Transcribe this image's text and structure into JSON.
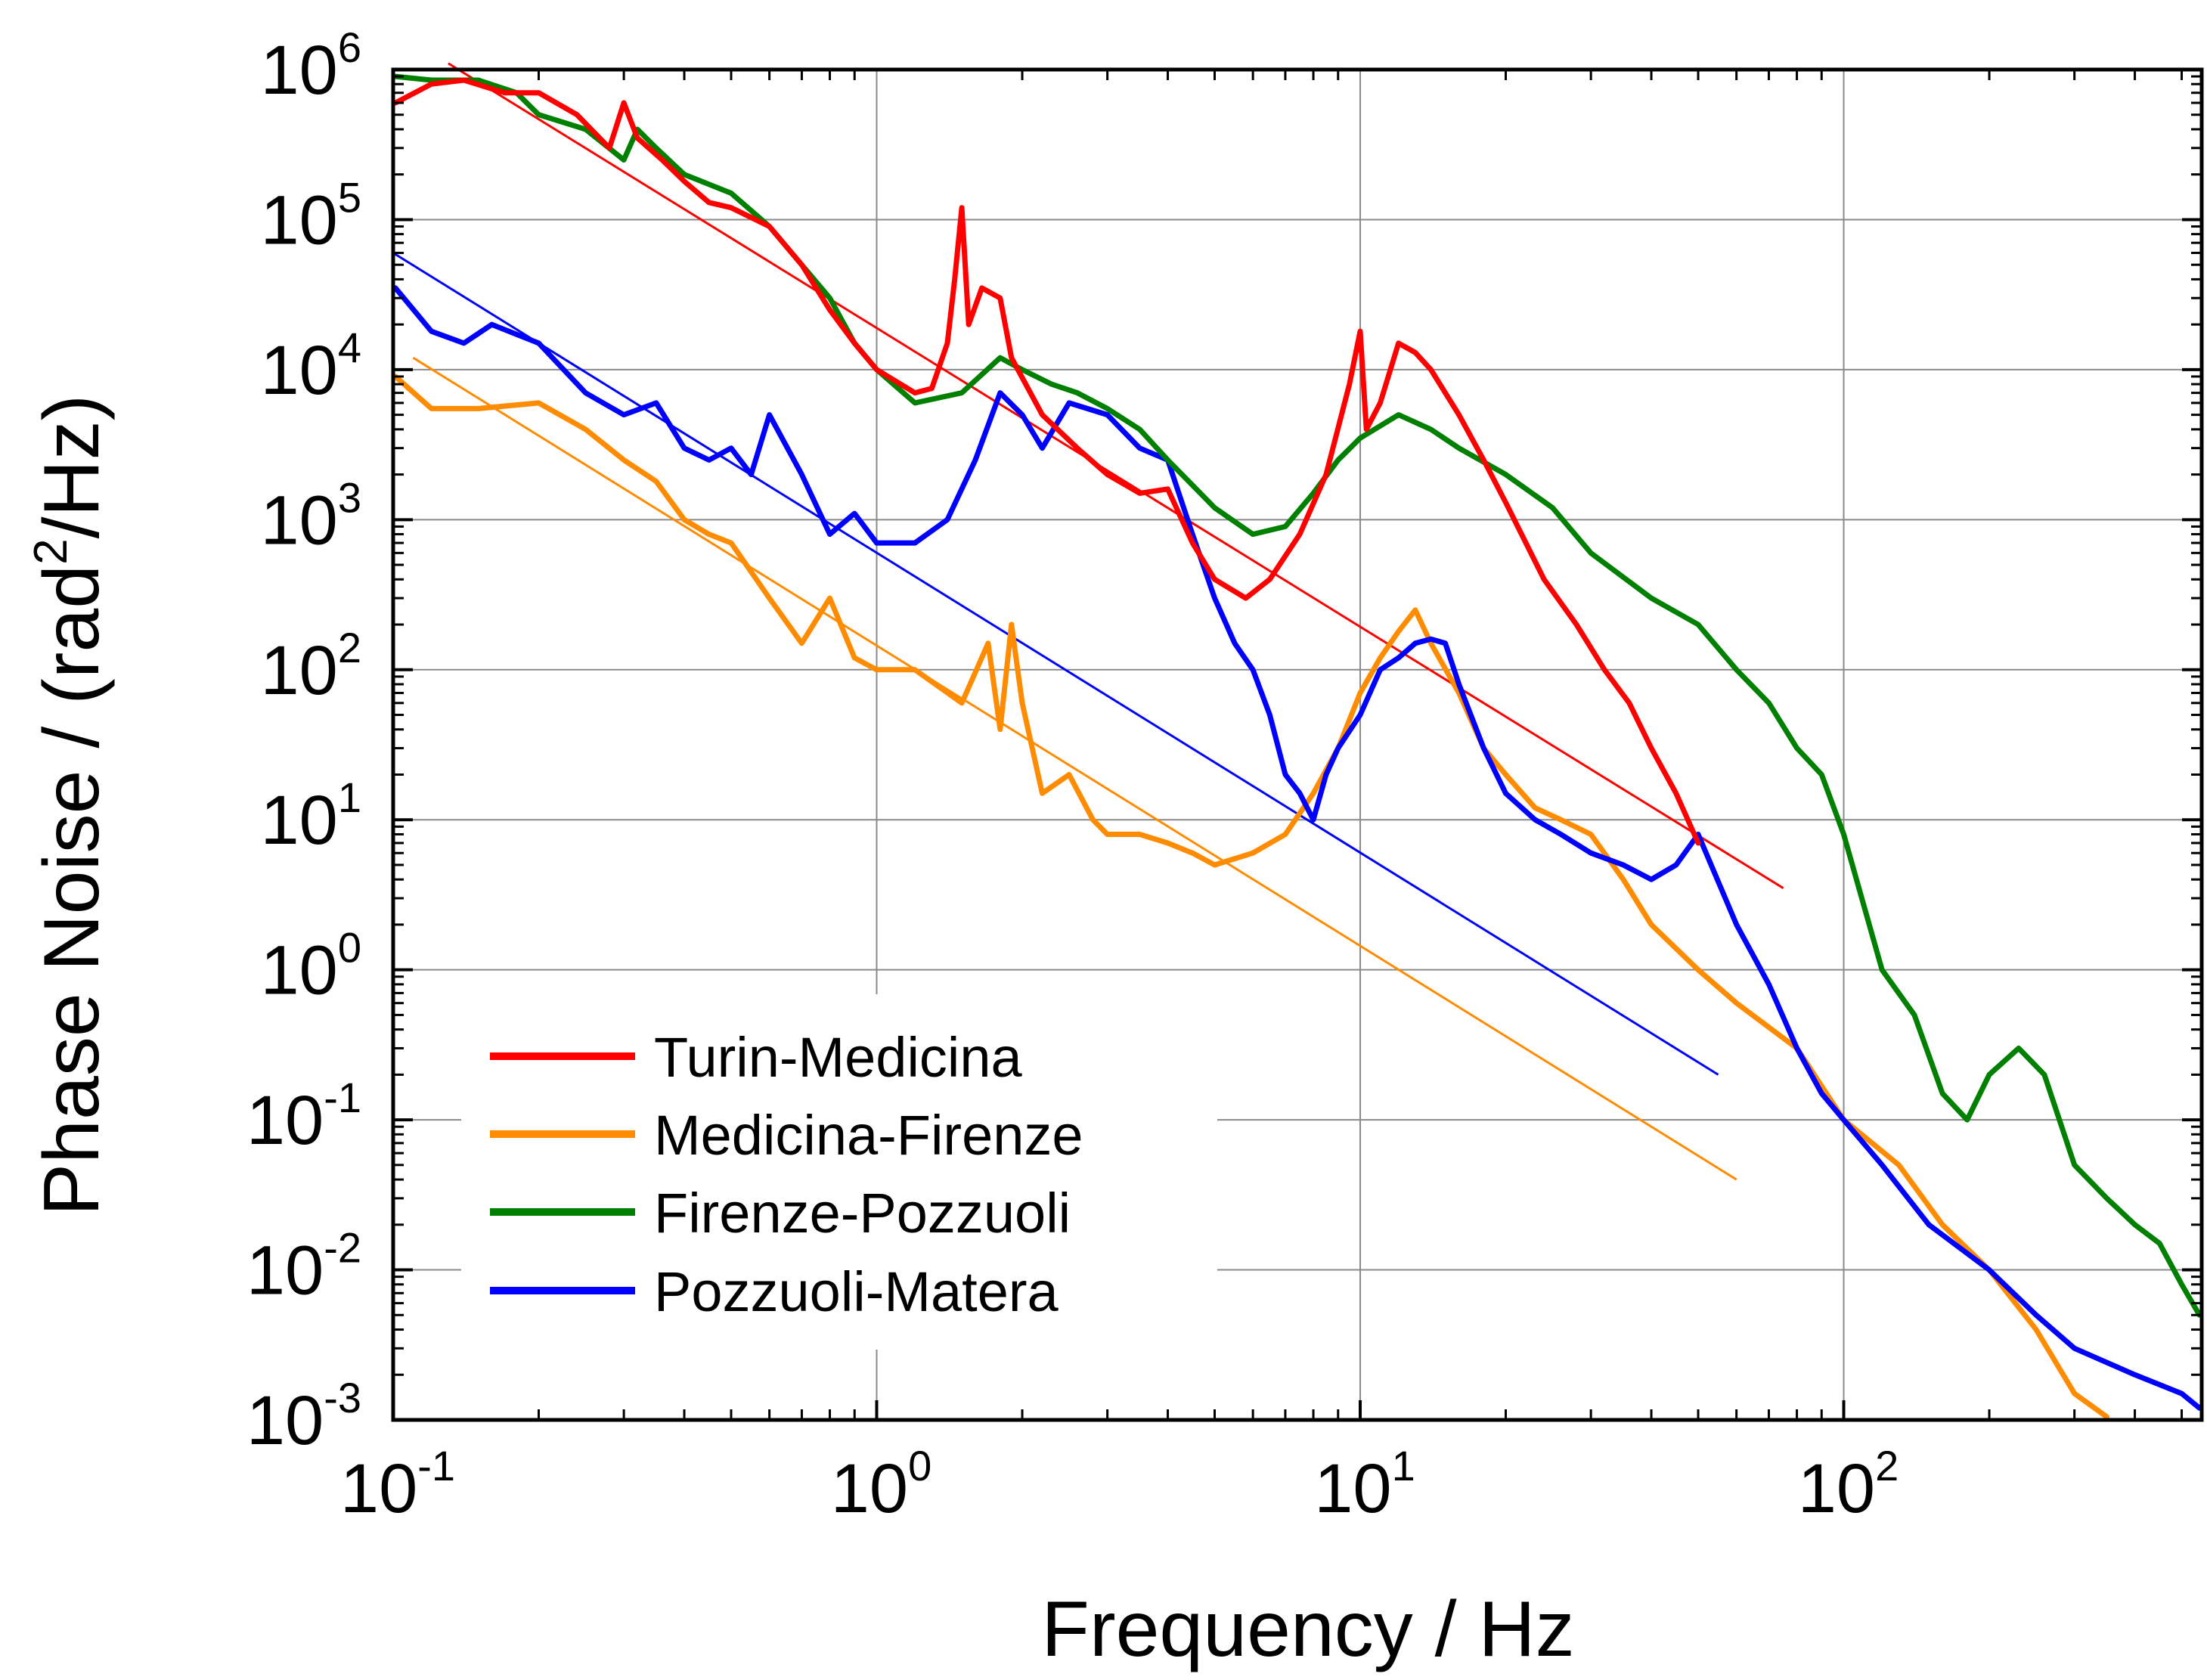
{
  "chart_data": {
    "type": "line",
    "title": "",
    "xlabel": "Frequency / Hz",
    "ylabel_parts": [
      "Phase Noise / (rad",
      "2",
      "/Hz)"
    ],
    "xscale": "log",
    "yscale": "log",
    "xlim": [
      0.1,
      550
    ],
    "ylim": [
      0.001,
      1000000
    ],
    "grid": true,
    "legend_position": "lower-left",
    "x_ticks": [
      {
        "value": 0.1,
        "base": "10",
        "exp": "-1"
      },
      {
        "value": 1,
        "base": "10",
        "exp": "0"
      },
      {
        "value": 10,
        "base": "10",
        "exp": "1"
      },
      {
        "value": 100,
        "base": "10",
        "exp": "2"
      }
    ],
    "y_ticks": [
      {
        "value": 1000000,
        "base": "10",
        "exp": "6"
      },
      {
        "value": 100000,
        "base": "10",
        "exp": "5"
      },
      {
        "value": 10000,
        "base": "10",
        "exp": "4"
      },
      {
        "value": 1000,
        "base": "10",
        "exp": "3"
      },
      {
        "value": 100,
        "base": "10",
        "exp": "2"
      },
      {
        "value": 10,
        "base": "10",
        "exp": "1"
      },
      {
        "value": 1,
        "base": "10",
        "exp": "0"
      },
      {
        "value": 0.1,
        "base": "10",
        "exp": "-1"
      },
      {
        "value": 0.01,
        "base": "10",
        "exp": "-2"
      },
      {
        "value": 0.001,
        "base": "10",
        "exp": "-3"
      }
    ],
    "series": [
      {
        "name": "Turin-Medicina",
        "color": "#ff0000",
        "points": [
          [
            0.1,
            600000
          ],
          [
            0.12,
            800000
          ],
          [
            0.14,
            850000
          ],
          [
            0.17,
            700000
          ],
          [
            0.2,
            700000
          ],
          [
            0.24,
            500000
          ],
          [
            0.28,
            300000
          ],
          [
            0.3,
            600000
          ],
          [
            0.32,
            350000
          ],
          [
            0.36,
            250000
          ],
          [
            0.4,
            180000
          ],
          [
            0.45,
            130000
          ],
          [
            0.5,
            120000
          ],
          [
            0.6,
            90000
          ],
          [
            0.7,
            50000
          ],
          [
            0.8,
            25000
          ],
          [
            0.9,
            15000
          ],
          [
            1.0,
            10000
          ],
          [
            1.2,
            7000
          ],
          [
            1.3,
            7500
          ],
          [
            1.4,
            15000
          ],
          [
            1.45,
            40000
          ],
          [
            1.5,
            120000
          ],
          [
            1.55,
            20000
          ],
          [
            1.65,
            35000
          ],
          [
            1.8,
            30000
          ],
          [
            1.9,
            12000
          ],
          [
            2.2,
            5000
          ],
          [
            2.6,
            3000
          ],
          [
            3.0,
            2000
          ],
          [
            3.5,
            1500
          ],
          [
            4.0,
            1600
          ],
          [
            4.5,
            700
          ],
          [
            5.0,
            400
          ],
          [
            5.8,
            300
          ],
          [
            6.5,
            400
          ],
          [
            7.5,
            800
          ],
          [
            8.5,
            2000
          ],
          [
            9.5,
            8000
          ],
          [
            10.0,
            18000
          ],
          [
            10.3,
            4000
          ],
          [
            11,
            6000
          ],
          [
            12,
            15000
          ],
          [
            13,
            13000
          ],
          [
            14,
            10000
          ],
          [
            16,
            5000
          ],
          [
            18,
            2500
          ],
          [
            20,
            1300
          ],
          [
            24,
            400
          ],
          [
            28,
            200
          ],
          [
            32,
            100
          ],
          [
            36,
            60
          ],
          [
            40,
            30
          ],
          [
            45,
            15
          ],
          [
            50,
            7
          ]
        ]
      },
      {
        "name": "Medicina-Firenze",
        "color": "#ff8c00",
        "points": [
          [
            0.1,
            9000
          ],
          [
            0.12,
            5500
          ],
          [
            0.15,
            5500
          ],
          [
            0.2,
            6000
          ],
          [
            0.25,
            4000
          ],
          [
            0.3,
            2500
          ],
          [
            0.35,
            1800
          ],
          [
            0.4,
            1000
          ],
          [
            0.45,
            800
          ],
          [
            0.5,
            700
          ],
          [
            0.6,
            300
          ],
          [
            0.7,
            150
          ],
          [
            0.8,
            300
          ],
          [
            0.9,
            120
          ],
          [
            1.0,
            100
          ],
          [
            1.2,
            100
          ],
          [
            1.5,
            60
          ],
          [
            1.7,
            150
          ],
          [
            1.8,
            40
          ],
          [
            1.9,
            200
          ],
          [
            2.0,
            60
          ],
          [
            2.2,
            15
          ],
          [
            2.5,
            20
          ],
          [
            2.8,
            10
          ],
          [
            3.0,
            8
          ],
          [
            3.5,
            8
          ],
          [
            4.0,
            7
          ],
          [
            4.5,
            6
          ],
          [
            5.0,
            5
          ],
          [
            6.0,
            6
          ],
          [
            7.0,
            8
          ],
          [
            8.0,
            15
          ],
          [
            9.0,
            30
          ],
          [
            10,
            70
          ],
          [
            11,
            120
          ],
          [
            12,
            180
          ],
          [
            13,
            250
          ],
          [
            14,
            150
          ],
          [
            16,
            70
          ],
          [
            18,
            30
          ],
          [
            20,
            20
          ],
          [
            23,
            12
          ],
          [
            26,
            10
          ],
          [
            30,
            8
          ],
          [
            35,
            4
          ],
          [
            40,
            2
          ],
          [
            50,
            1
          ],
          [
            60,
            0.6
          ],
          [
            80,
            0.3
          ],
          [
            100,
            0.1
          ],
          [
            130,
            0.05
          ],
          [
            160,
            0.02
          ],
          [
            200,
            0.01
          ],
          [
            250,
            0.004
          ],
          [
            300,
            0.0015
          ],
          [
            350,
            0.001
          ]
        ]
      },
      {
        "name": "Firenze-Pozzuoli",
        "color": "#008000",
        "points": [
          [
            0.1,
            900000
          ],
          [
            0.12,
            850000
          ],
          [
            0.15,
            850000
          ],
          [
            0.18,
            700000
          ],
          [
            0.2,
            500000
          ],
          [
            0.25,
            400000
          ],
          [
            0.3,
            250000
          ],
          [
            0.32,
            400000
          ],
          [
            0.35,
            300000
          ],
          [
            0.4,
            200000
          ],
          [
            0.5,
            150000
          ],
          [
            0.6,
            90000
          ],
          [
            0.7,
            50000
          ],
          [
            0.8,
            30000
          ],
          [
            0.9,
            15000
          ],
          [
            1.0,
            10000
          ],
          [
            1.2,
            6000
          ],
          [
            1.5,
            7000
          ],
          [
            1.8,
            12000
          ],
          [
            2.0,
            10000
          ],
          [
            2.3,
            8000
          ],
          [
            2.6,
            7000
          ],
          [
            3.0,
            5500
          ],
          [
            3.5,
            4000
          ],
          [
            4.0,
            2500
          ],
          [
            5.0,
            1200
          ],
          [
            6.0,
            800
          ],
          [
            7.0,
            900
          ],
          [
            8.0,
            1500
          ],
          [
            9.0,
            2500
          ],
          [
            10,
            3500
          ],
          [
            12,
            5000
          ],
          [
            14,
            4000
          ],
          [
            16,
            3000
          ],
          [
            20,
            2000
          ],
          [
            25,
            1200
          ],
          [
            30,
            600
          ],
          [
            40,
            300
          ],
          [
            50,
            200
          ],
          [
            60,
            100
          ],
          [
            70,
            60
          ],
          [
            80,
            30
          ],
          [
            90,
            20
          ],
          [
            100,
            8
          ],
          [
            120,
            1
          ],
          [
            140,
            0.5
          ],
          [
            160,
            0.15
          ],
          [
            180,
            0.1
          ],
          [
            200,
            0.2
          ],
          [
            230,
            0.3
          ],
          [
            260,
            0.2
          ],
          [
            300,
            0.05
          ],
          [
            350,
            0.03
          ],
          [
            400,
            0.02
          ],
          [
            450,
            0.015
          ],
          [
            500,
            0.008
          ],
          [
            550,
            0.005
          ]
        ]
      },
      {
        "name": "Pozzuoli-Matera",
        "color": "#0000ff",
        "points": [
          [
            0.1,
            35000
          ],
          [
            0.12,
            18000
          ],
          [
            0.14,
            15000
          ],
          [
            0.16,
            20000
          ],
          [
            0.2,
            15000
          ],
          [
            0.25,
            7000
          ],
          [
            0.3,
            5000
          ],
          [
            0.35,
            6000
          ],
          [
            0.4,
            3000
          ],
          [
            0.45,
            2500
          ],
          [
            0.5,
            3000
          ],
          [
            0.55,
            2000
          ],
          [
            0.6,
            5000
          ],
          [
            0.7,
            2000
          ],
          [
            0.8,
            800
          ],
          [
            0.9,
            1100
          ],
          [
            1.0,
            700
          ],
          [
            1.2,
            700
          ],
          [
            1.4,
            1000
          ],
          [
            1.6,
            2500
          ],
          [
            1.8,
            7000
          ],
          [
            2.0,
            5000
          ],
          [
            2.2,
            3000
          ],
          [
            2.5,
            6000
          ],
          [
            3.0,
            5000
          ],
          [
            3.5,
            3000
          ],
          [
            4.0,
            2500
          ],
          [
            4.5,
            800
          ],
          [
            5.0,
            300
          ],
          [
            5.5,
            150
          ],
          [
            6.0,
            100
          ],
          [
            6.5,
            50
          ],
          [
            7.0,
            20
          ],
          [
            7.5,
            15
          ],
          [
            8.0,
            10
          ],
          [
            8.5,
            20
          ],
          [
            9.0,
            30
          ],
          [
            10,
            50
          ],
          [
            11,
            100
          ],
          [
            12,
            120
          ],
          [
            13,
            150
          ],
          [
            14,
            160
          ],
          [
            15,
            150
          ],
          [
            16,
            80
          ],
          [
            18,
            30
          ],
          [
            20,
            15
          ],
          [
            23,
            10
          ],
          [
            26,
            8
          ],
          [
            30,
            6
          ],
          [
            35,
            5
          ],
          [
            40,
            4
          ],
          [
            45,
            5
          ],
          [
            50,
            8
          ],
          [
            60,
            2
          ],
          [
            70,
            0.8
          ],
          [
            80,
            0.3
          ],
          [
            90,
            0.15
          ],
          [
            100,
            0.1
          ],
          [
            120,
            0.05
          ],
          [
            150,
            0.02
          ],
          [
            200,
            0.01
          ],
          [
            250,
            0.005
          ],
          [
            300,
            0.003
          ],
          [
            400,
            0.002
          ],
          [
            500,
            0.0015
          ],
          [
            550,
            0.0012
          ]
        ]
      }
    ],
    "fit_lines": [
      {
        "color": "#ff0000",
        "start": [
          0.13,
          1100000
        ],
        "end": [
          75,
          3.5
        ]
      },
      {
        "color": "#ff8c00",
        "start": [
          0.11,
          12000
        ],
        "end": [
          60,
          0.04
        ]
      },
      {
        "color": "#0000ff",
        "start": [
          0.1,
          60000
        ],
        "end": [
          55,
          0.2
        ]
      }
    ]
  }
}
